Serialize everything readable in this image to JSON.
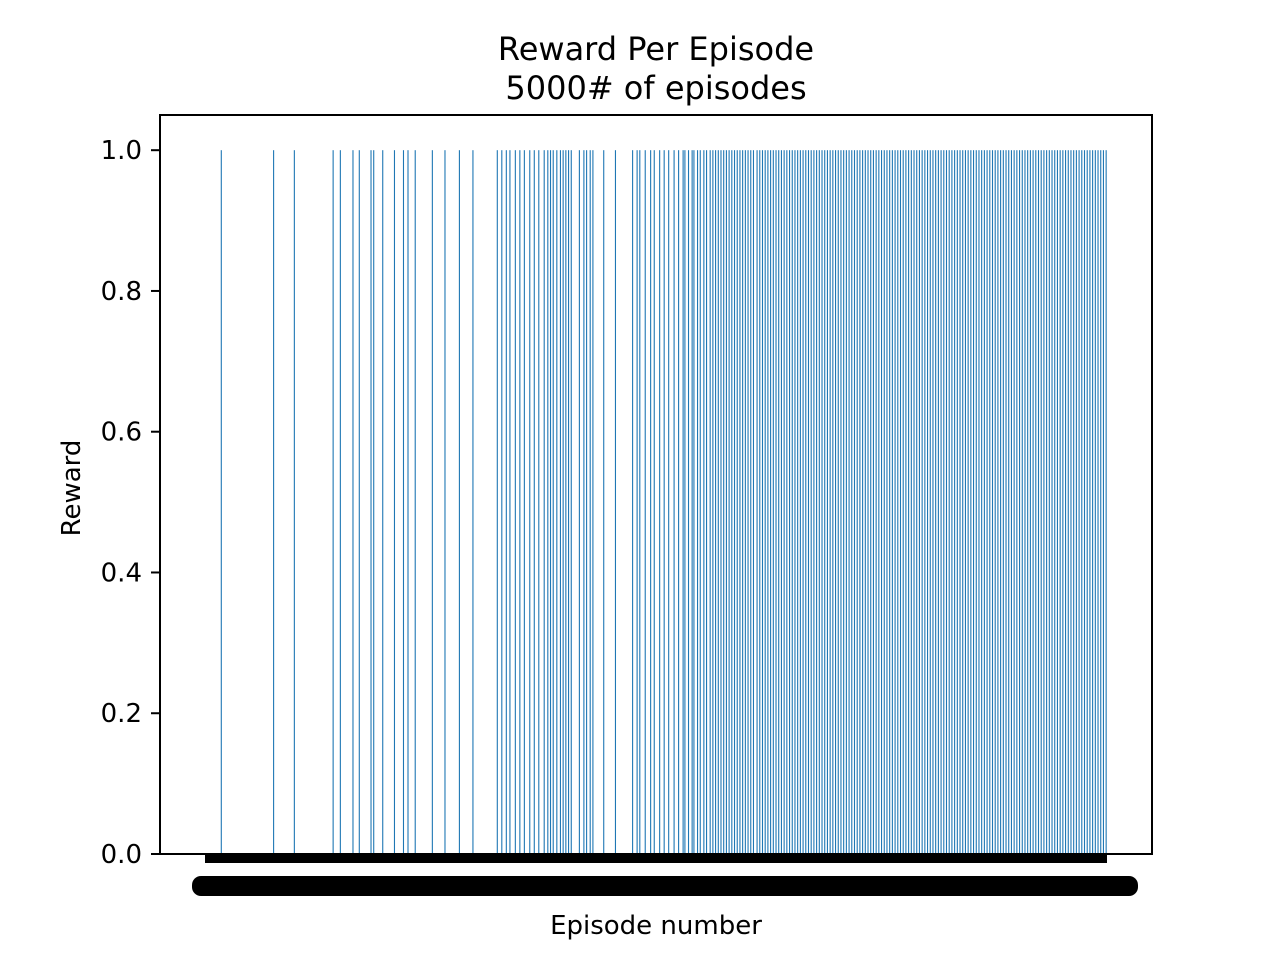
{
  "chart_data": {
    "type": "bar",
    "title": "Reward Per Episode",
    "subtitle": "5000# of episodes",
    "xlabel": "Episode number",
    "ylabel": "Reward",
    "x_range": [
      0,
      5000
    ],
    "ylim": [
      0,
      1.05
    ],
    "y_ticks": [
      "0.0",
      "0.2",
      "0.4",
      "0.6",
      "0.8",
      "1.0"
    ],
    "grid": false,
    "bar_color": "#1f77b4",
    "default_value": 0.0,
    "series": [
      {
        "values_at_one": [
          90,
          380,
          495,
          710,
          750,
          820,
          855,
          920,
          935,
          985,
          1050,
          1100,
          1125,
          1165,
          1260,
          1330,
          1410,
          1485,
          1620,
          1645,
          1670,
          1690,
          1720,
          1745,
          1770,
          1800,
          1825,
          1850,
          1880,
          1900,
          1915,
          1930,
          1950,
          1970,
          1985,
          2000,
          2015,
          2030,
          2075,
          2100,
          2115,
          2135,
          2150,
          2210,
          2275,
          2370,
          2395,
          2410,
          2440,
          2470,
          2490,
          2520,
          2545,
          2570,
          2600,
          2625,
          2650,
          2660,
          2680,
          2700,
          2710,
          2730,
          2745,
          2765,
          2780,
          2800,
          2815,
          2830,
          2845,
          2860,
          2875,
          2890,
          2905,
          2920,
          2935,
          2950,
          2965,
          2980,
          2995,
          3010,
          3025,
          3040,
          3060,
          3075,
          3090,
          3105,
          3120,
          3135,
          3150,
          3165,
          3180,
          3195,
          3210,
          3225,
          3240,
          3255,
          3270,
          3285,
          3300,
          3315,
          3330,
          3345,
          3360,
          3375,
          3390,
          3405,
          3420,
          3435,
          3450,
          3465,
          3480,
          3495,
          3510,
          3525,
          3540,
          3555,
          3570,
          3585,
          3600,
          3615,
          3630,
          3645,
          3660,
          3675,
          3690,
          3705,
          3720,
          3735,
          3750,
          3765,
          3780,
          3795,
          3810,
          3825,
          3840,
          3855,
          3870,
          3885,
          3900,
          3915,
          3930,
          3945,
          3960,
          3975,
          3990,
          4005,
          4020,
          4035,
          4050,
          4065,
          4080,
          4095,
          4110,
          4125,
          4140,
          4155,
          4170,
          4185,
          4200,
          4215,
          4230,
          4245,
          4260,
          4275,
          4290,
          4305,
          4320,
          4335,
          4350,
          4365,
          4380,
          4395,
          4410,
          4425,
          4440,
          4455,
          4470,
          4485,
          4500,
          4515,
          4530,
          4545,
          4560,
          4575,
          4590,
          4605,
          4620,
          4635,
          4650,
          4665,
          4680,
          4695,
          4710,
          4725,
          4740,
          4755,
          4770,
          4785,
          4800,
          4815,
          4830,
          4845,
          4860,
          4875,
          4890,
          4905,
          4920,
          4935,
          4950,
          4965,
          4980,
          4995
        ]
      }
    ]
  }
}
